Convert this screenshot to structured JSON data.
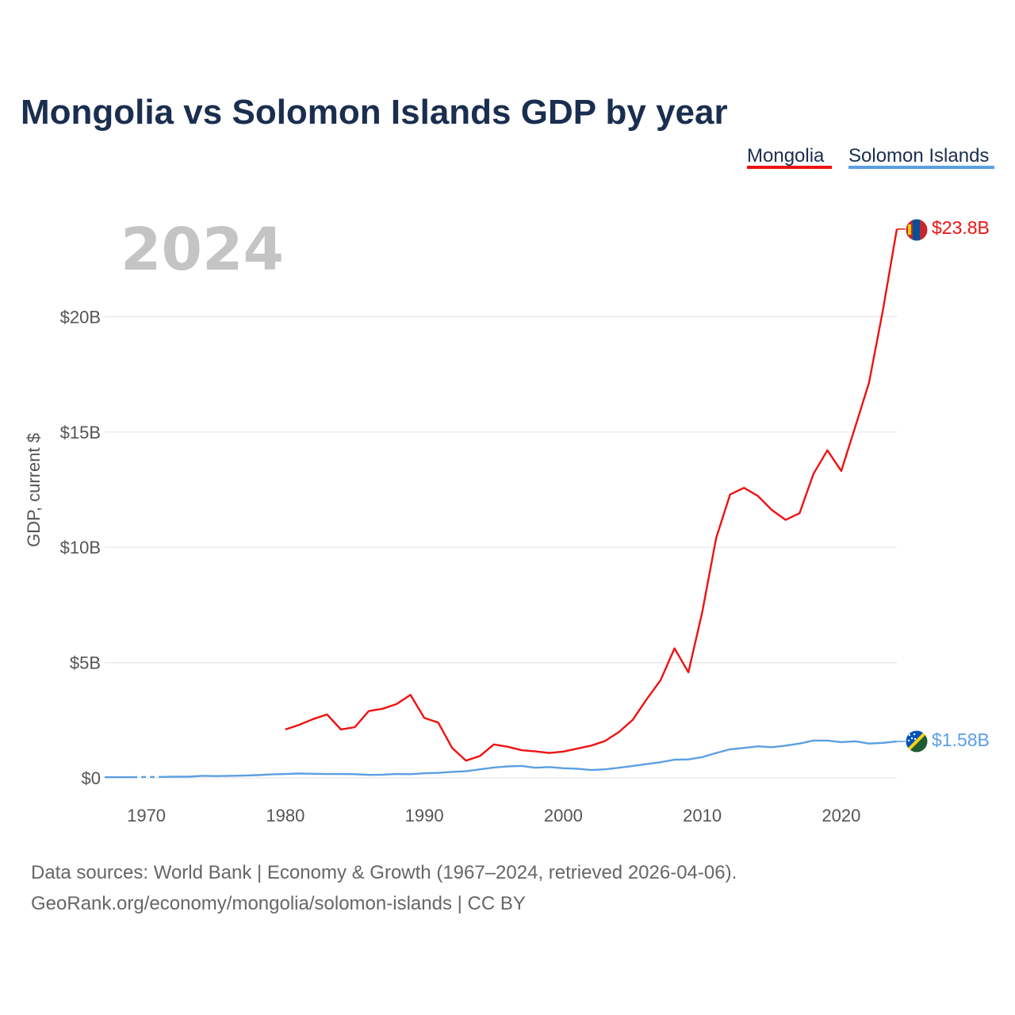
{
  "chart_data": {
    "type": "line",
    "title": "Mongolia vs Solomon Islands GDP by year",
    "current_year": "2024",
    "xlabel": "",
    "ylabel": "GDP, current $",
    "xlim": [
      1967,
      2024
    ],
    "ylim": [
      0,
      25
    ],
    "y_ticks": [
      {
        "value": 0,
        "label": "$0"
      },
      {
        "value": 5,
        "label": "$5B"
      },
      {
        "value": 10,
        "label": "$10B"
      },
      {
        "value": 15,
        "label": "$15B"
      },
      {
        "value": 20,
        "label": "$20B"
      }
    ],
    "x_ticks": [
      {
        "value": 1970,
        "label": "1970"
      },
      {
        "value": 1980,
        "label": "1980"
      },
      {
        "value": 1990,
        "label": "1990"
      },
      {
        "value": 2000,
        "label": "2000"
      },
      {
        "value": 2010,
        "label": "2010"
      },
      {
        "value": 2020,
        "label": "2020"
      }
    ],
    "series": [
      {
        "name": "Mongolia",
        "color": "#ee1111",
        "end_label": "$23.8B",
        "flag": "mongolia-flag",
        "x": [
          1980,
          1981,
          1982,
          1983,
          1984,
          1985,
          1986,
          1987,
          1988,
          1989,
          1990,
          1991,
          1992,
          1993,
          1994,
          1995,
          1996,
          1997,
          1998,
          1999,
          2000,
          2001,
          2002,
          2003,
          2004,
          2005,
          2006,
          2007,
          2008,
          2009,
          2010,
          2011,
          2012,
          2013,
          2014,
          2015,
          2016,
          2017,
          2018,
          2019,
          2020,
          2021,
          2022,
          2023,
          2024
        ],
        "values": [
          2.1,
          2.3,
          2.55,
          2.75,
          2.1,
          2.2,
          2.9,
          3.0,
          3.2,
          3.6,
          2.6,
          2.4,
          1.3,
          0.75,
          0.95,
          1.45,
          1.35,
          1.2,
          1.15,
          1.08,
          1.14,
          1.27,
          1.4,
          1.6,
          1.99,
          2.52,
          3.41,
          4.24,
          5.62,
          4.58,
          7.19,
          10.41,
          12.29,
          12.58,
          12.23,
          11.62,
          11.19,
          11.48,
          13.18,
          14.21,
          13.31,
          15.21,
          17.14,
          20.3,
          23.8
        ]
      },
      {
        "name": "Solomon Islands",
        "color": "#5b9fe3",
        "end_label": "$1.58B",
        "flag": "solomon-islands-flag",
        "gap": [
          1969,
          1971
        ],
        "x": [
          1967,
          1968,
          1969,
          1970,
          1971,
          1972,
          1973,
          1974,
          1975,
          1976,
          1977,
          1978,
          1979,
          1980,
          1981,
          1982,
          1983,
          1984,
          1985,
          1986,
          1987,
          1988,
          1989,
          1990,
          1991,
          1992,
          1993,
          1994,
          1995,
          1996,
          1997,
          1998,
          1999,
          2000,
          2001,
          2002,
          2003,
          2004,
          2005,
          2006,
          2007,
          2008,
          2009,
          2010,
          2011,
          2012,
          2013,
          2014,
          2015,
          2016,
          2017,
          2018,
          2019,
          2020,
          2021,
          2022,
          2023,
          2024
        ],
        "values": [
          0.03,
          0.03,
          0.03,
          0.04,
          0.04,
          0.05,
          0.05,
          0.09,
          0.08,
          0.09,
          0.1,
          0.12,
          0.15,
          0.17,
          0.19,
          0.18,
          0.17,
          0.17,
          0.16,
          0.13,
          0.14,
          0.17,
          0.16,
          0.2,
          0.22,
          0.26,
          0.29,
          0.37,
          0.45,
          0.5,
          0.52,
          0.44,
          0.47,
          0.42,
          0.4,
          0.34,
          0.37,
          0.44,
          0.52,
          0.6,
          0.68,
          0.79,
          0.8,
          0.9,
          1.08,
          1.24,
          1.3,
          1.37,
          1.33,
          1.4,
          1.49,
          1.62,
          1.62,
          1.55,
          1.59,
          1.49,
          1.52,
          1.58
        ]
      }
    ],
    "legend": {
      "position": "top-right",
      "entries": [
        "Mongolia",
        "Solomon Islands"
      ]
    }
  },
  "footer": {
    "source_line": "Data sources: World Bank | Economy & Growth (1967–2024, retrieved 2026-04-06).",
    "link_line": "GeoRank.org/economy/mongolia/solomon-islands | CC BY"
  }
}
